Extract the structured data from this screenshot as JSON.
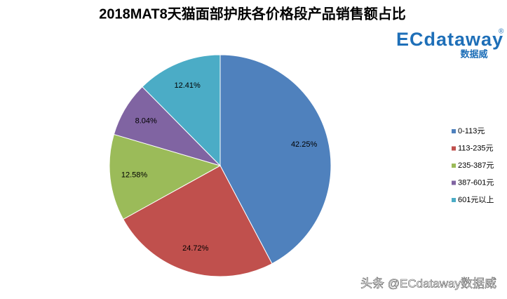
{
  "chart_data": {
    "type": "pie",
    "title": "2018MAT8天猫面部护肤各价格段产品销售额占比",
    "categories": [
      "0-113元",
      "113-235元",
      "235-387元",
      "387-601元",
      "601元以上"
    ],
    "values": [
      42.25,
      24.72,
      12.58,
      8.04,
      12.41
    ],
    "value_labels": [
      "42.25%",
      "24.72%",
      "12.58%",
      "8.04%",
      "12.41%"
    ],
    "colors": [
      "#4f81bd",
      "#c0504d",
      "#9bbb59",
      "#8064a2",
      "#4bacc6"
    ],
    "legend": "right"
  },
  "logo": {
    "text": "ECdataway",
    "mark": "®",
    "subtitle": "数据威"
  },
  "watermark": "头条 @ECdataway数据威"
}
